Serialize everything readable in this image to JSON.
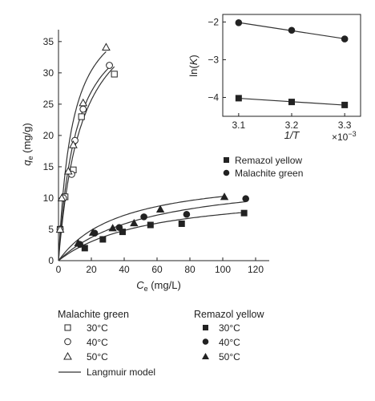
{
  "chart_data": [
    {
      "type": "scatter",
      "xlabel_var": "C",
      "xlabel_sub": "e",
      "xlabel_unit": " (mg/L)",
      "ylabel_var": "q",
      "ylabel_sub": "e",
      "ylabel_unit": " (mg/g)",
      "xlim": [
        0,
        130
      ],
      "ylim": [
        0,
        37
      ],
      "xticks": [
        0,
        20,
        40,
        60,
        80,
        100,
        120
      ],
      "yticks": [
        0,
        5,
        10,
        15,
        20,
        25,
        30,
        35
      ],
      "series": [
        {
          "dye": "Malachite green",
          "temp": "30°C",
          "marker": "square-open",
          "x": [
            1,
            4,
            9,
            14,
            34
          ],
          "y": [
            5,
            10.2,
            14.5,
            23,
            29.8
          ],
          "fit": {
            "qmax": 44,
            "K": 0.07,
            "xmax": 34
          }
        },
        {
          "dye": "Malachite green",
          "temp": "40°C",
          "marker": "circle-open",
          "x": [
            1,
            3,
            8,
            10,
            15,
            31
          ],
          "y": [
            5,
            10,
            13.8,
            19.2,
            24.2,
            31.2
          ],
          "fit": {
            "qmax": 42,
            "K": 0.09,
            "xmax": 31
          }
        },
        {
          "dye": "Malachite green",
          "temp": "50°C",
          "marker": "triangle-open",
          "x": [
            1,
            2,
            6,
            9,
            15,
            29
          ],
          "y": [
            5,
            10,
            14.3,
            18.5,
            25.2,
            34.1
          ],
          "fit": {
            "qmax": 43,
            "K": 0.12,
            "xmax": 29
          }
        },
        {
          "dye": "Remazol yellow",
          "temp": "30°C",
          "marker": "square",
          "x": [
            16,
            27,
            39,
            56,
            75,
            113
          ],
          "y": [
            2,
            3.4,
            4.6,
            5.7,
            5.9,
            7.6
          ],
          "fit": {
            "qmax": 11.5,
            "K": 0.018,
            "xmax": 114
          }
        },
        {
          "dye": "Remazol yellow",
          "temp": "40°C",
          "marker": "circle",
          "x": [
            13,
            22,
            37,
            52,
            78,
            114
          ],
          "y": [
            2.6,
            4.4,
            5.3,
            7,
            7.4,
            9.9
          ],
          "fit": {
            "qmax": 14,
            "K": 0.018,
            "xmax": 114
          }
        },
        {
          "dye": "Remazol yellow",
          "temp": "50°C",
          "marker": "triangle",
          "x": [
            12,
            21,
            33,
            46,
            62,
            101
          ],
          "y": [
            2.8,
            4.5,
            5.2,
            6,
            8.2,
            10.2
          ],
          "fit": {
            "qmax": 14.2,
            "K": 0.026,
            "xmax": 101
          }
        }
      ]
    },
    {
      "type": "line",
      "xlabel": "1/T",
      "ylabel_pre": "ln(",
      "ylabel_var": "K",
      "ylabel_post": ")",
      "x_multiplier_base": "×10",
      "x_multiplier_exp": "−3",
      "xlim": [
        3.07,
        3.33
      ],
      "ylim": [
        -4.5,
        -1.8
      ],
      "xticks": [
        "3.1",
        "3.2",
        "3.3"
      ],
      "yticks": [
        "−2",
        "−3",
        "−4"
      ],
      "series": [
        {
          "name": "Remazol yellow",
          "marker": "square",
          "x": [
            3.1,
            3.2,
            3.3
          ],
          "y": [
            -4.02,
            -4.12,
            -4.2
          ]
        },
        {
          "name": "Malachite green",
          "marker": "circle",
          "x": [
            3.1,
            3.2,
            3.3
          ],
          "y": [
            -2.02,
            -2.22,
            -2.45
          ]
        }
      ]
    }
  ],
  "legend": {
    "malachite_head": "Malachite green",
    "remazol_head": "Remazol yellow",
    "t30": "30°C",
    "t40": "40°C",
    "t50": "50°C",
    "model": "Langmuir model"
  },
  "inset_legend": {
    "remazol": "Remazol yellow",
    "malachite": "Malachite green"
  }
}
